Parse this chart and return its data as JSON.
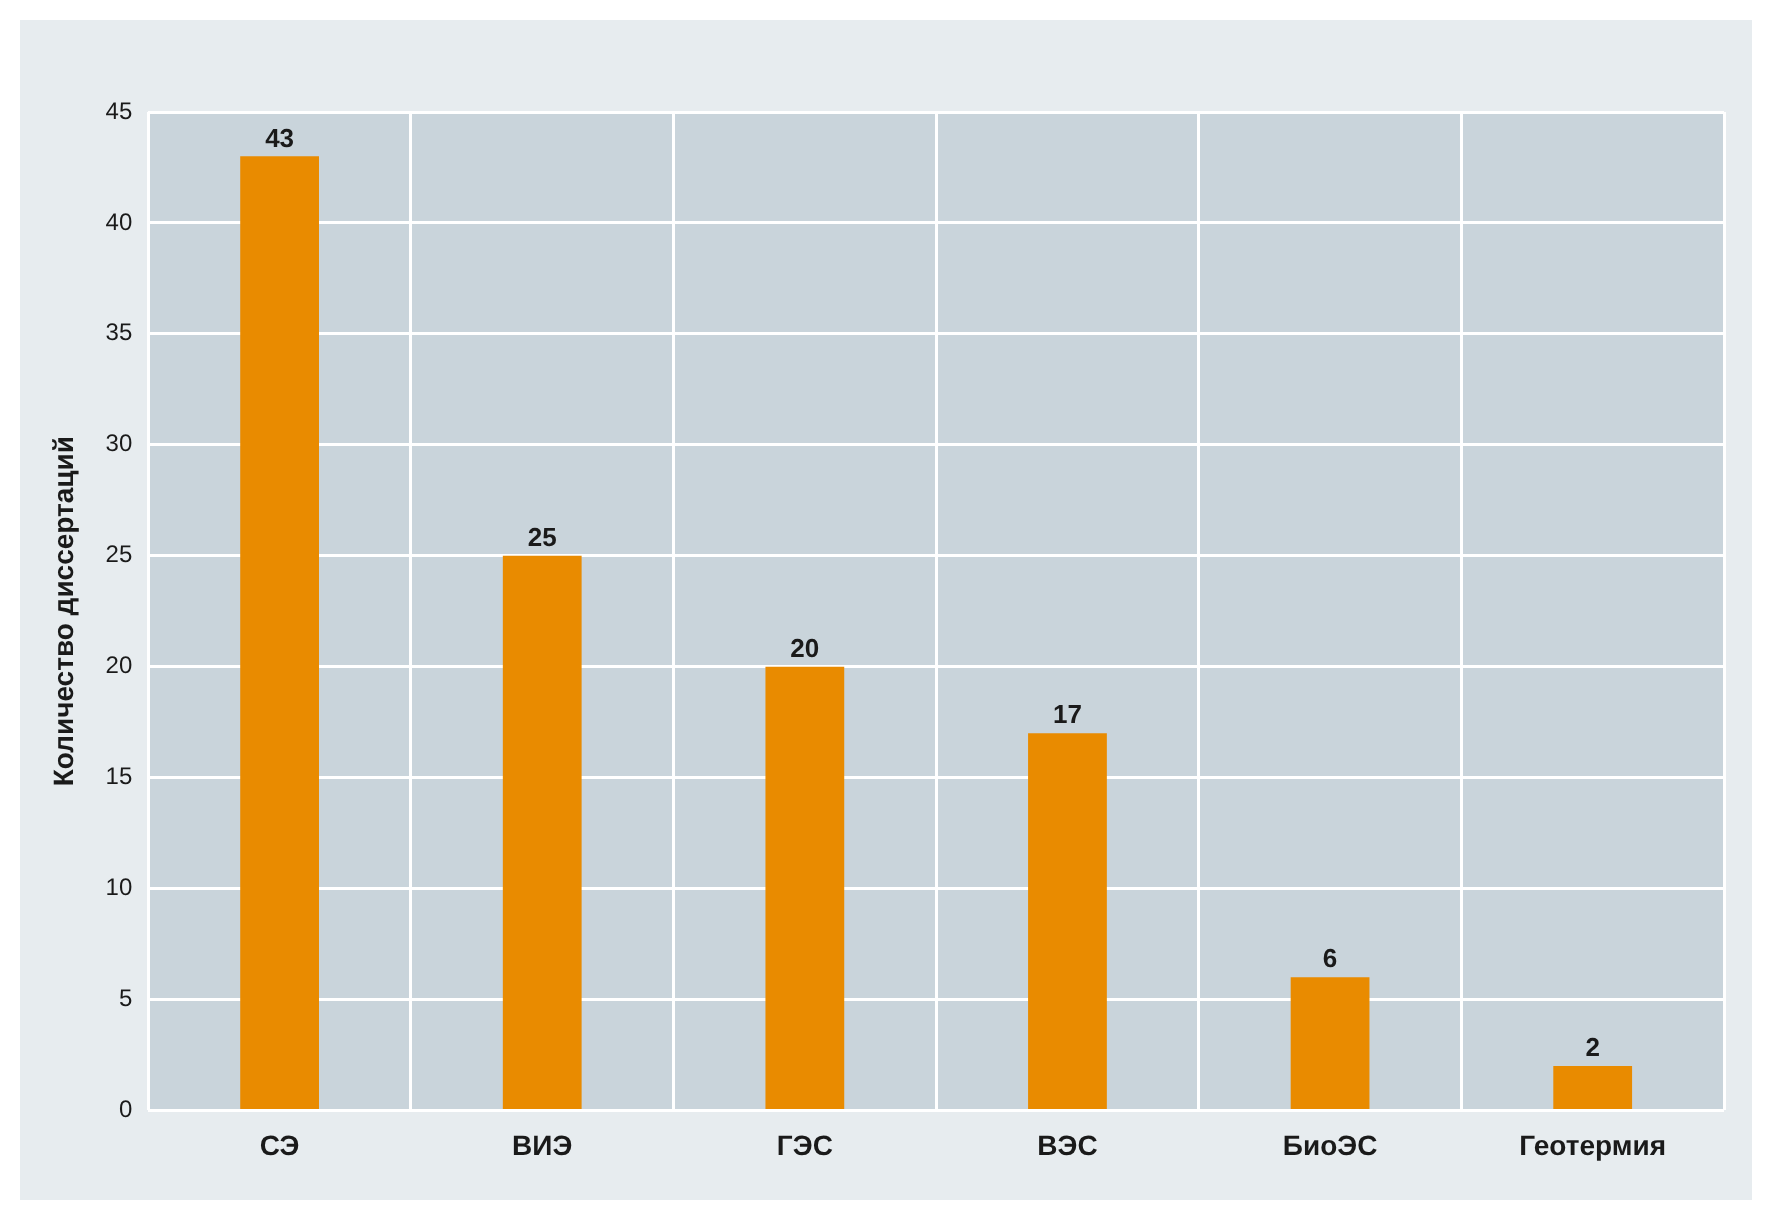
{
  "chart_data": {
    "type": "bar",
    "ylabel": "Количество диссертаций",
    "categories": [
      "СЭ",
      "ВИЭ",
      "ГЭС",
      "ВЭС",
      "БиоЭС",
      "Геотермия"
    ],
    "values": [
      43,
      25,
      20,
      17,
      6,
      2
    ],
    "color": "#e98b00",
    "ylim": [
      0,
      45
    ],
    "yticks": [
      0,
      5,
      10,
      15,
      20,
      25,
      30,
      35,
      40,
      45
    ],
    "grid": true,
    "data_labels": true
  }
}
